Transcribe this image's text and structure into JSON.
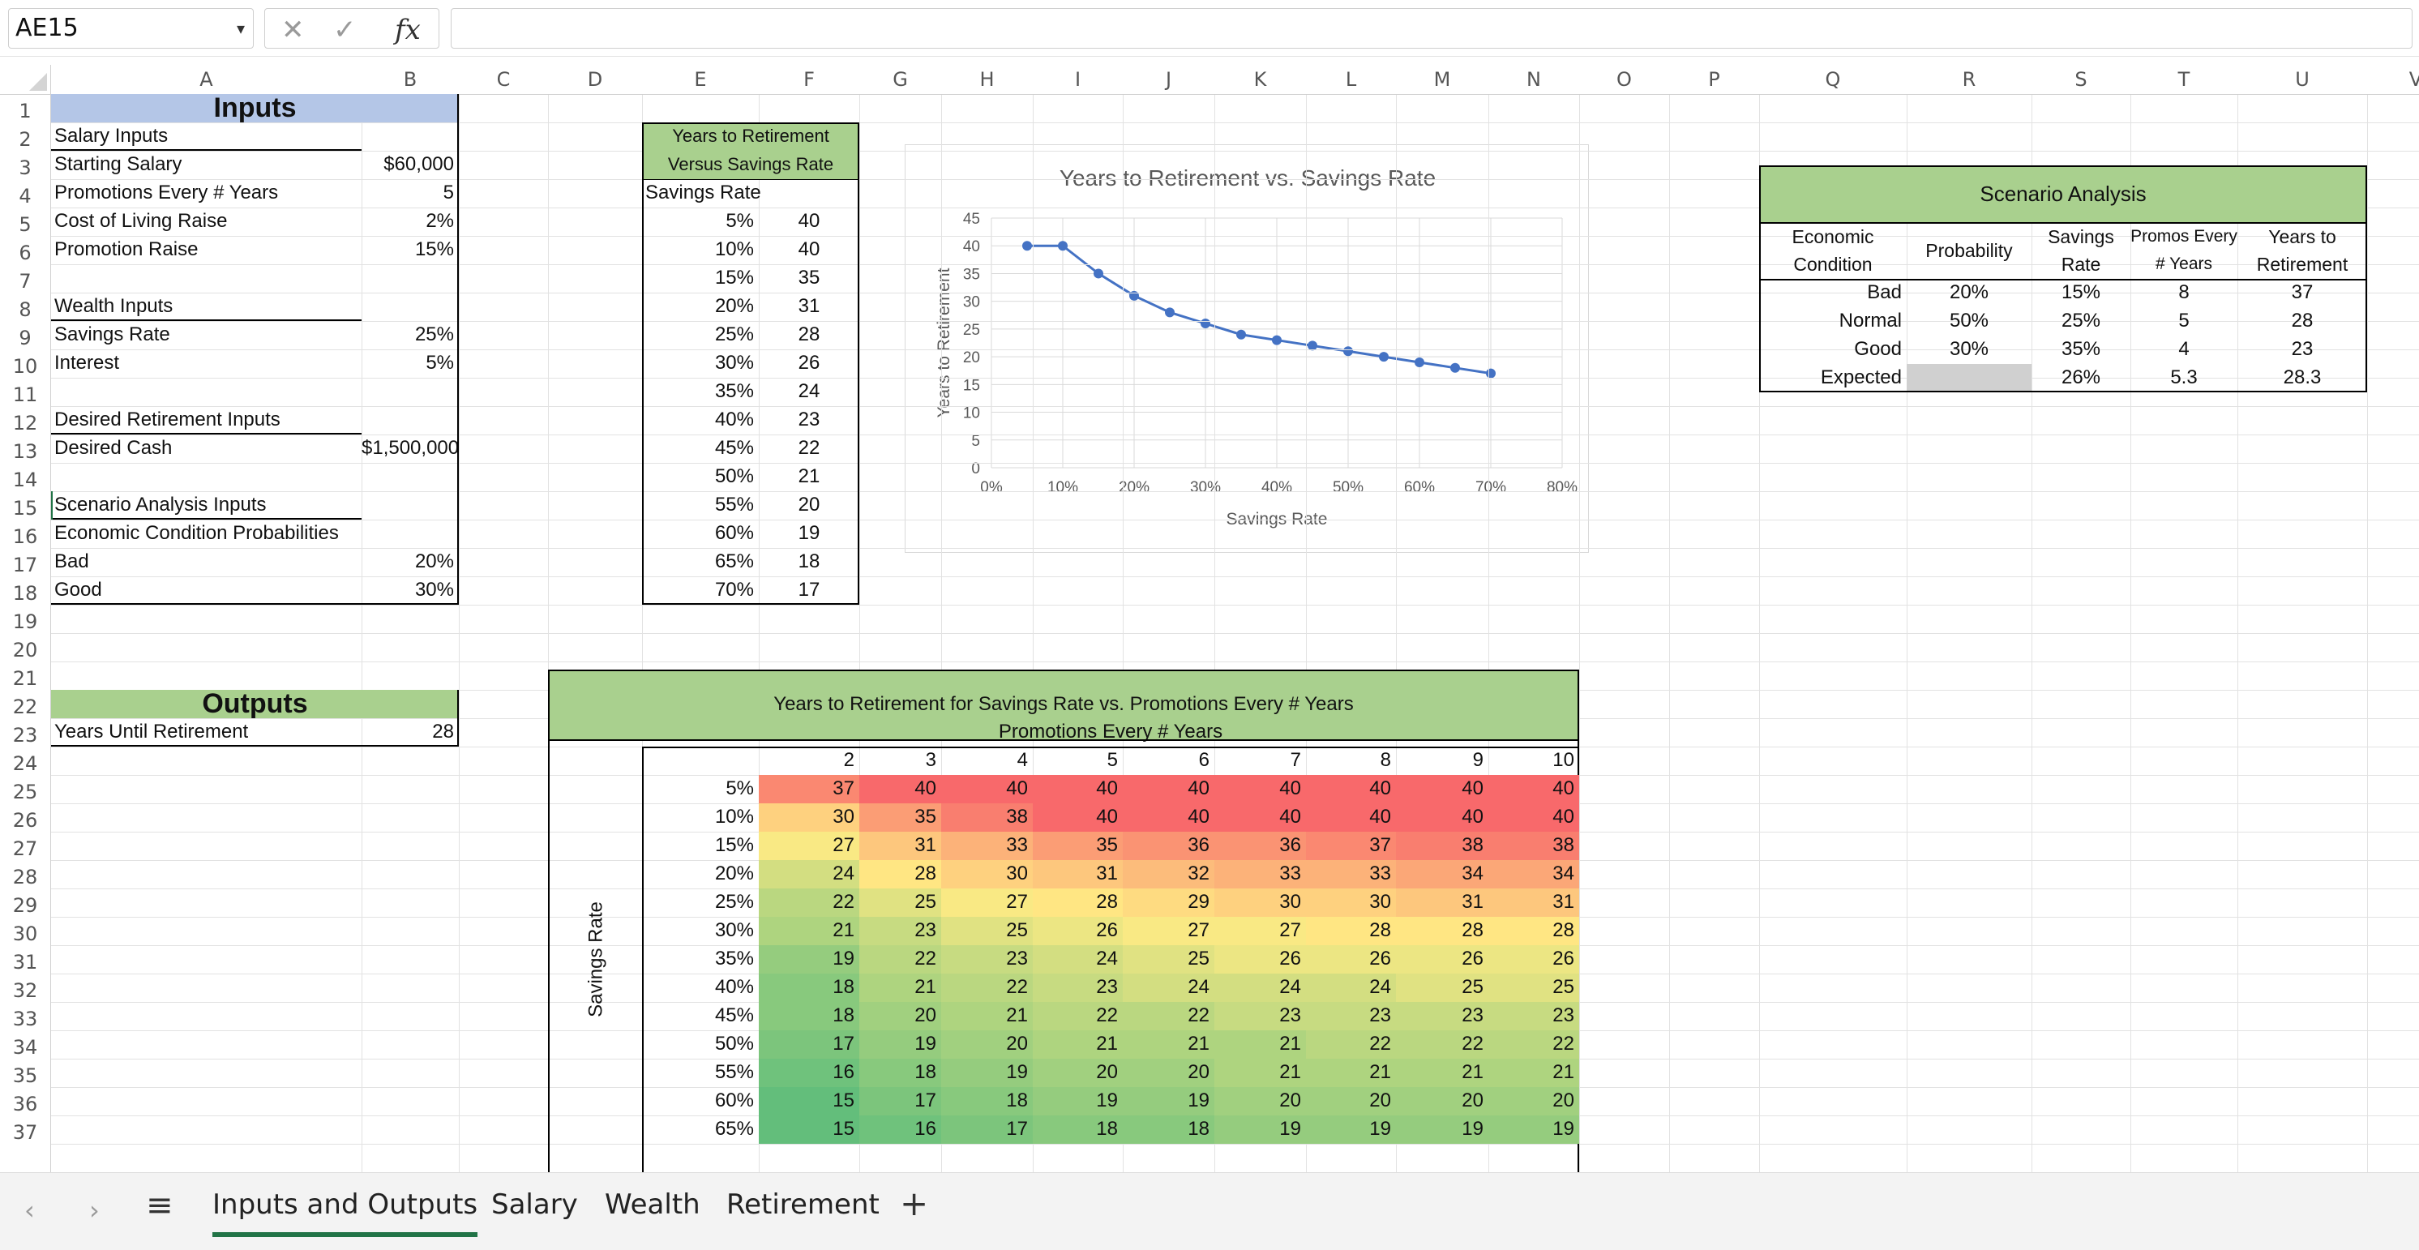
{
  "formula_bar": {
    "cell_ref": "AE15",
    "fx_label": "fx",
    "cancel_glyph": "✕",
    "enter_glyph": "✓",
    "formula": ""
  },
  "columns": [
    "A",
    "B",
    "C",
    "D",
    "E",
    "F",
    "G",
    "H",
    "I",
    "J",
    "K",
    "L",
    "M",
    "N",
    "O",
    "P",
    "Q",
    "R",
    "S",
    "T",
    "U",
    "V"
  ],
  "rows": [
    "1",
    "2",
    "3",
    "4",
    "5",
    "6",
    "7",
    "8",
    "9",
    "10",
    "11",
    "12",
    "13",
    "14",
    "15",
    "16",
    "17",
    "18",
    "19",
    "20",
    "21",
    "22",
    "23",
    "24",
    "25",
    "26",
    "27",
    "28",
    "29",
    "30",
    "31",
    "32",
    "33",
    "34",
    "35",
    "36",
    "37"
  ],
  "inputs": {
    "title": "Inputs",
    "salary_header": "Salary Inputs",
    "starting_salary_label": "Starting Salary",
    "starting_salary": "$60,000",
    "promotions_label": "Promotions Every # Years",
    "promotions": "5",
    "col_raise_label": "Cost of Living Raise",
    "col_raise": "2%",
    "promo_raise_label": "Promotion Raise",
    "promo_raise": "15%",
    "wealth_header": "Wealth Inputs",
    "savings_rate_label": "Savings Rate",
    "savings_rate": "25%",
    "interest_label": "Interest",
    "interest": "5%",
    "retirement_header": "Desired Retirement Inputs",
    "desired_cash_label": "Desired Cash",
    "desired_cash": "$1,500,000",
    "scenario_header": "Scenario Analysis Inputs",
    "econ_prob_label": "Economic Condition Probabilities",
    "bad_label": "Bad",
    "bad_prob": "20%",
    "good_label": "Good",
    "good_prob": "30%"
  },
  "outputs": {
    "title": "Outputs",
    "years_label": "Years Until Retirement",
    "years": "28"
  },
  "yrs_table": {
    "title_line1": "Years to Retirement",
    "title_line2": "Versus Savings Rate",
    "col_label": "Savings Rate",
    "rows": [
      [
        "5%",
        "40"
      ],
      [
        "10%",
        "40"
      ],
      [
        "15%",
        "35"
      ],
      [
        "20%",
        "31"
      ],
      [
        "25%",
        "28"
      ],
      [
        "30%",
        "26"
      ],
      [
        "35%",
        "24"
      ],
      [
        "40%",
        "23"
      ],
      [
        "45%",
        "22"
      ],
      [
        "50%",
        "21"
      ],
      [
        "55%",
        "20"
      ],
      [
        "60%",
        "19"
      ],
      [
        "65%",
        "18"
      ],
      [
        "70%",
        "17"
      ]
    ]
  },
  "scenario": {
    "title": "Scenario Analysis",
    "headers": [
      "Economic Condition",
      "Probability",
      "Savings Rate",
      "Promos Every # Years",
      "Years to Retirement"
    ],
    "rows": [
      [
        "Bad",
        "20%",
        "15%",
        "8",
        "37"
      ],
      [
        "Normal",
        "50%",
        "25%",
        "5",
        "28"
      ],
      [
        "Good",
        "30%",
        "35%",
        "4",
        "23"
      ],
      [
        "Expected",
        "",
        "26%",
        "5.3",
        "28.3"
      ]
    ]
  },
  "chart_data": {
    "type": "line",
    "title": "Years to Retirement vs. Savings Rate",
    "xlabel": "Savings Rate",
    "ylabel": "Years to Retirement",
    "x": [
      0.05,
      0.1,
      0.15,
      0.2,
      0.25,
      0.3,
      0.35,
      0.4,
      0.45,
      0.5,
      0.55,
      0.6,
      0.65,
      0.7
    ],
    "series": [
      {
        "values": [
          40,
          40,
          35,
          31,
          28,
          26,
          24,
          23,
          22,
          21,
          20,
          19,
          18,
          17
        ]
      }
    ],
    "xlim": [
      0,
      0.8
    ],
    "ylim": [
      0,
      45
    ],
    "xticks": [
      "0%",
      "10%",
      "20%",
      "30%",
      "40%",
      "50%",
      "60%",
      "70%",
      "80%"
    ],
    "yticks": [
      "0",
      "5",
      "10",
      "15",
      "20",
      "25",
      "30",
      "35",
      "40",
      "45"
    ],
    "grid": true,
    "color": "#4472c4"
  },
  "heatmap": {
    "title": "Years to Retirement for Savings Rate vs. Promotions Every # Years",
    "col_title": "Promotions Every # Years",
    "row_title": "Savings Rate",
    "cols": [
      "2",
      "3",
      "4",
      "5",
      "6",
      "7",
      "8",
      "9",
      "10"
    ],
    "rows": [
      "5%",
      "10%",
      "15%",
      "20%",
      "25%",
      "30%",
      "35%",
      "40%",
      "45%",
      "50%",
      "55%",
      "60%",
      "65%"
    ],
    "values": [
      [
        37,
        40,
        40,
        40,
        40,
        40,
        40,
        40,
        40
      ],
      [
        30,
        35,
        38,
        40,
        40,
        40,
        40,
        40,
        40
      ],
      [
        27,
        31,
        33,
        35,
        36,
        36,
        37,
        38,
        38
      ],
      [
        24,
        28,
        30,
        31,
        32,
        33,
        33,
        34,
        34
      ],
      [
        22,
        25,
        27,
        28,
        29,
        30,
        30,
        31,
        31
      ],
      [
        21,
        23,
        25,
        26,
        27,
        27,
        28,
        28,
        28
      ],
      [
        19,
        22,
        23,
        24,
        25,
        26,
        26,
        26,
        26
      ],
      [
        18,
        21,
        22,
        23,
        24,
        24,
        24,
        25,
        25
      ],
      [
        18,
        20,
        21,
        22,
        22,
        23,
        23,
        23,
        23
      ],
      [
        17,
        19,
        20,
        21,
        21,
        21,
        22,
        22,
        22
      ],
      [
        16,
        18,
        19,
        20,
        20,
        21,
        21,
        21,
        21
      ],
      [
        15,
        17,
        18,
        19,
        19,
        20,
        20,
        20,
        20
      ],
      [
        15,
        16,
        17,
        18,
        18,
        19,
        19,
        19,
        19
      ]
    ],
    "scale": {
      "min": 15,
      "mid": 27.5,
      "max": 40,
      "low_color": "#63be7b",
      "mid_color": "#ffeb84",
      "high_color": "#f8696b"
    }
  },
  "tabs": {
    "items": [
      "Inputs and Outputs",
      "Salary",
      "Wealth",
      "Retirement"
    ],
    "add": "+",
    "menu": "≡",
    "prev": "‹",
    "next": "›",
    "active": "Inputs and Outputs"
  }
}
